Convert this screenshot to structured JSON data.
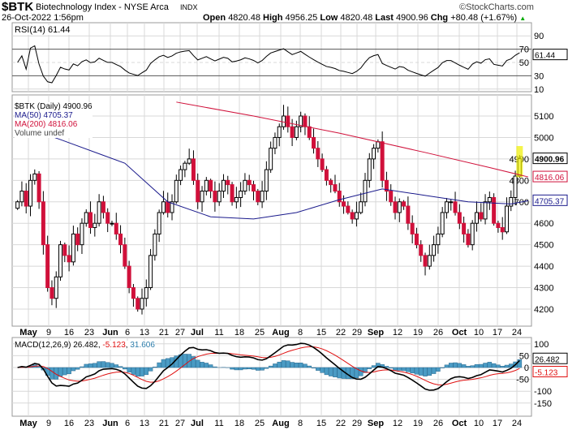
{
  "header": {
    "symbol": "$BTK",
    "name": "Biotechnology Index - NYSE Arca",
    "exchange": "INDX",
    "brand": "©StockCharts.com",
    "datetime": "26-Oct-2022 1:56pm",
    "open_label": "Open",
    "open": "4820.48",
    "high_label": "High",
    "high": "4956.25",
    "low_label": "Low",
    "low": "4820.48",
    "last_label": "Last",
    "last": "4900.96",
    "chg_label": "Chg",
    "chg": "+80.48 (+1.67%)",
    "chg_arrow": "▲"
  },
  "colors": {
    "up": "#000000",
    "down": "#d0103a",
    "ma50": "#1a1a8c",
    "ma200": "#d0103a",
    "macd_hist": "#4a9bc4",
    "signal": "#e01010",
    "grid": "#d8d8d8"
  },
  "chart_data": [
    {
      "type": "line",
      "title": "RSI(14) 61.44",
      "label": "RSI(14)",
      "last": "61.44",
      "ylim": [
        0,
        100
      ],
      "yticks": [
        "90",
        "70",
        "50",
        "30",
        "10"
      ]
    },
    {
      "type": "candlestick",
      "legend": [
        "$BTK (Daily) 4900.96",
        "MA(50) 4705.37",
        "MA(200) 4816.06",
        "Volume undef"
      ],
      "ylim": [
        4130,
        5200
      ],
      "yticks": [
        "5100",
        "5000",
        "4900",
        "4800",
        "4700",
        "4600",
        "4500",
        "4400",
        "4300",
        "4200"
      ],
      "last_labels": {
        "close": "4900.96",
        "ma200": "4816.06",
        "ma50": "4705.37"
      },
      "closes": [
        4700,
        4750,
        4680,
        4800,
        4830,
        4700,
        4500,
        4300,
        4250,
        4350,
        4500,
        4450,
        4420,
        4550,
        4500,
        4600,
        4650,
        4580,
        4600,
        4700,
        4650,
        4600,
        4600,
        4550,
        4500,
        4400,
        4300,
        4250,
        4200,
        4250,
        4300,
        4450,
        4550,
        4650,
        4700,
        4650,
        4700,
        4800,
        4850,
        4880,
        4900,
        4800,
        4700,
        4750,
        4800,
        4750,
        4700,
        4750,
        4800,
        4780,
        4700,
        4720,
        4750,
        4800,
        4780,
        4750,
        4700,
        4750,
        4850,
        4950,
        5000,
        5050,
        5100,
        5050,
        5000,
        5050,
        5100,
        5050,
        5000,
        4950,
        4900,
        4850,
        4800,
        4780,
        4750,
        4700,
        4680,
        4650,
        4620,
        4650,
        4700,
        4800,
        4900,
        4950,
        4980,
        4800,
        4750,
        4700,
        4650,
        4700,
        4680,
        4600,
        4550,
        4500,
        4450,
        4400,
        4450,
        4500,
        4550,
        4650,
        4700,
        4700,
        4650,
        4600,
        4550,
        4500,
        4600,
        4650,
        4620,
        4700,
        4720,
        4600,
        4580,
        4560,
        4680,
        4720,
        4820,
        4900.96
      ],
      "ma50": [
        [
          0,
          5060
        ],
        [
          10,
          4990
        ],
        [
          25,
          4880
        ],
        [
          35,
          4700
        ],
        [
          45,
          4630
        ],
        [
          55,
          4620
        ],
        [
          65,
          4650
        ],
        [
          75,
          4710
        ],
        [
          85,
          4760
        ],
        [
          95,
          4730
        ],
        [
          105,
          4700
        ],
        [
          115,
          4690
        ],
        [
          119,
          4705.37
        ]
      ],
      "ma200": [
        [
          37,
          5165
        ],
        [
          55,
          5100
        ],
        [
          75,
          5020
        ],
        [
          95,
          4930
        ],
        [
          110,
          4860
        ],
        [
          119,
          4816.06
        ]
      ]
    },
    {
      "type": "macd",
      "label": "MACD(12,26,9)",
      "macd": "26.482",
      "signal": "-5.123",
      "hist": "31.606",
      "ylim": [
        -200,
        130
      ],
      "yticks": [
        "100",
        "50",
        "0",
        "-50",
        "-100",
        "-150"
      ],
      "last_labels": {
        "macd": "26.482",
        "signal": "-5.123"
      }
    }
  ],
  "xaxis": [
    "May",
    "9",
    "16",
    "23",
    "Jun",
    "6",
    "13",
    "21",
    "27",
    "Jul",
    "11",
    "18",
    "25",
    "Aug",
    "8",
    "15",
    "22",
    "29",
    "Sep",
    "12",
    "19",
    "26",
    "Oct",
    "10",
    "17",
    "24"
  ]
}
